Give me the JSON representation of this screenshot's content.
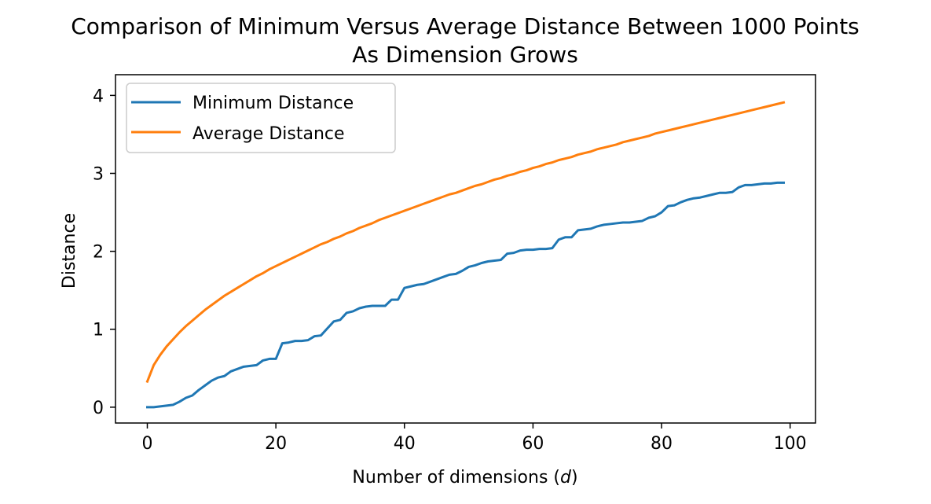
{
  "chart_data": {
    "type": "line",
    "title_line1": "Comparison of Minimum Versus Average Distance Between 1000 Points",
    "title_line2": "As Dimension Grows",
    "xlabel_main": "Number of dimensions (",
    "xlabel_var": "d",
    "xlabel_close": ")",
    "ylabel": "Distance",
    "xlim": [
      -4.95,
      103.95
    ],
    "ylim": [
      -0.203,
      4.266
    ],
    "xticks": [
      0,
      20,
      40,
      60,
      80,
      100
    ],
    "yticks": [
      0,
      1,
      2,
      3,
      4
    ],
    "grid": false,
    "legend_position": "top-left",
    "series": [
      {
        "name": "Minimum Distance",
        "color": "#1f77b4",
        "x": [
          0,
          1,
          2,
          3,
          4,
          5,
          6,
          7,
          8,
          9,
          10,
          11,
          12,
          13,
          14,
          15,
          16,
          17,
          18,
          19,
          20,
          21,
          22,
          23,
          24,
          25,
          26,
          27,
          28,
          29,
          30,
          31,
          32,
          33,
          34,
          35,
          36,
          37,
          38,
          39,
          40,
          41,
          42,
          43,
          44,
          45,
          46,
          47,
          48,
          49,
          50,
          51,
          52,
          53,
          54,
          55,
          56,
          57,
          58,
          59,
          60,
          61,
          62,
          63,
          64,
          65,
          66,
          67,
          68,
          69,
          70,
          71,
          72,
          73,
          74,
          75,
          76,
          77,
          78,
          79,
          80,
          81,
          82,
          83,
          84,
          85,
          86,
          87,
          88,
          89,
          90,
          91,
          92,
          93,
          94,
          95,
          96,
          97,
          98,
          99
        ],
        "y": [
          0.0,
          0.0,
          0.01,
          0.02,
          0.03,
          0.07,
          0.12,
          0.15,
          0.22,
          0.28,
          0.34,
          0.38,
          0.4,
          0.46,
          0.49,
          0.52,
          0.53,
          0.54,
          0.6,
          0.62,
          0.62,
          0.82,
          0.83,
          0.85,
          0.85,
          0.86,
          0.91,
          0.92,
          1.01,
          1.1,
          1.12,
          1.21,
          1.23,
          1.27,
          1.29,
          1.3,
          1.3,
          1.3,
          1.38,
          1.38,
          1.53,
          1.55,
          1.57,
          1.58,
          1.61,
          1.64,
          1.67,
          1.7,
          1.71,
          1.75,
          1.8,
          1.82,
          1.85,
          1.87,
          1.88,
          1.89,
          1.97,
          1.98,
          2.01,
          2.02,
          2.02,
          2.03,
          2.03,
          2.04,
          2.15,
          2.18,
          2.18,
          2.27,
          2.28,
          2.29,
          2.32,
          2.34,
          2.35,
          2.36,
          2.37,
          2.37,
          2.38,
          2.39,
          2.43,
          2.45,
          2.5,
          2.58,
          2.59,
          2.63,
          2.66,
          2.68,
          2.69,
          2.71,
          2.73,
          2.75,
          2.75,
          2.76,
          2.82,
          2.85,
          2.85,
          2.86,
          2.87,
          2.87,
          2.88,
          2.88
        ]
      },
      {
        "name": "Average Distance",
        "color": "#ff7f0e",
        "x": [
          0,
          1,
          2,
          3,
          4,
          5,
          6,
          7,
          8,
          9,
          10,
          11,
          12,
          13,
          14,
          15,
          16,
          17,
          18,
          19,
          20,
          21,
          22,
          23,
          24,
          25,
          26,
          27,
          28,
          29,
          30,
          31,
          32,
          33,
          34,
          35,
          36,
          37,
          38,
          39,
          40,
          41,
          42,
          43,
          44,
          45,
          46,
          47,
          48,
          49,
          50,
          51,
          52,
          53,
          54,
          55,
          56,
          57,
          58,
          59,
          60,
          61,
          62,
          63,
          64,
          65,
          66,
          67,
          68,
          69,
          70,
          71,
          72,
          73,
          74,
          75,
          76,
          77,
          78,
          79,
          80,
          81,
          82,
          83,
          84,
          85,
          86,
          87,
          88,
          89,
          90,
          91,
          92,
          93,
          94,
          95,
          96,
          97,
          98,
          99
        ],
        "y": [
          0.33,
          0.54,
          0.67,
          0.78,
          0.87,
          0.96,
          1.04,
          1.11,
          1.18,
          1.25,
          1.31,
          1.37,
          1.43,
          1.48,
          1.53,
          1.58,
          1.63,
          1.68,
          1.72,
          1.77,
          1.81,
          1.85,
          1.89,
          1.93,
          1.97,
          2.01,
          2.05,
          2.09,
          2.12,
          2.16,
          2.19,
          2.23,
          2.26,
          2.3,
          2.33,
          2.36,
          2.4,
          2.43,
          2.46,
          2.49,
          2.52,
          2.55,
          2.58,
          2.61,
          2.64,
          2.67,
          2.7,
          2.73,
          2.75,
          2.78,
          2.81,
          2.84,
          2.86,
          2.89,
          2.92,
          2.94,
          2.97,
          2.99,
          3.02,
          3.04,
          3.07,
          3.09,
          3.12,
          3.14,
          3.17,
          3.19,
          3.21,
          3.24,
          3.26,
          3.28,
          3.31,
          3.33,
          3.35,
          3.37,
          3.4,
          3.42,
          3.44,
          3.46,
          3.48,
          3.51,
          3.53,
          3.55,
          3.57,
          3.59,
          3.61,
          3.63,
          3.65,
          3.67,
          3.69,
          3.71,
          3.73,
          3.75,
          3.77,
          3.79,
          3.81,
          3.83,
          3.85,
          3.87,
          3.89,
          3.91
        ]
      }
    ]
  }
}
